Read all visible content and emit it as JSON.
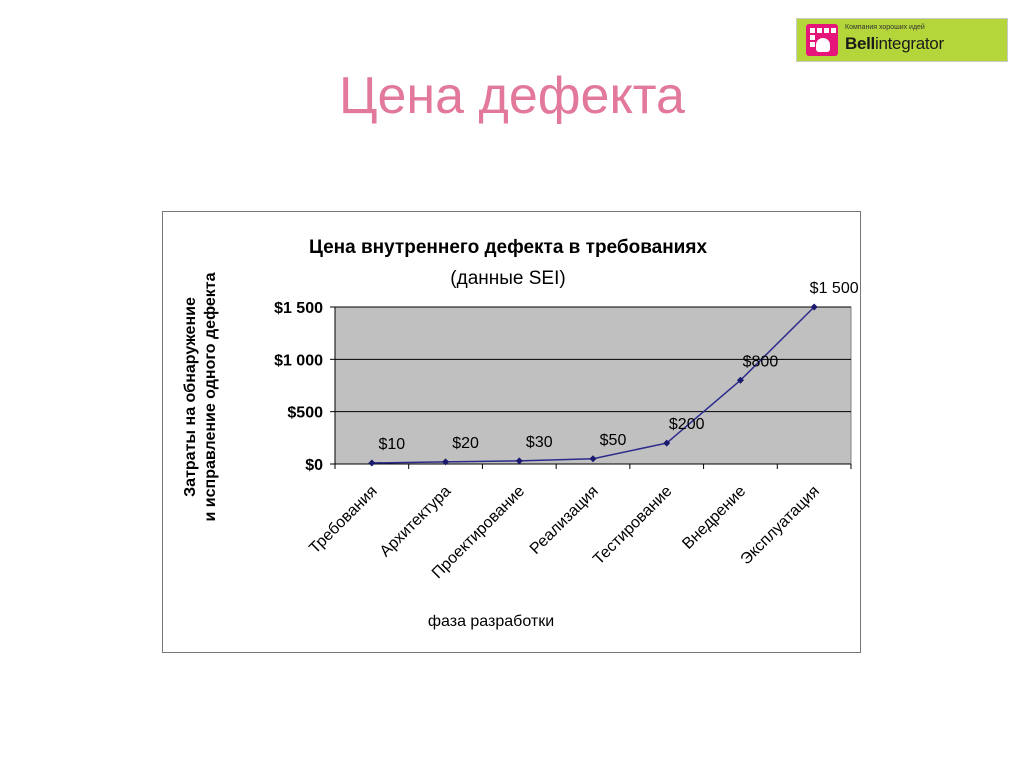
{
  "slide": {
    "title": "Цена дефекта"
  },
  "logo": {
    "tagline": "Компания хороших идей",
    "name_bold": "Bell",
    "name_regular": "integrator",
    "background_color": "#b5d63a",
    "mark_color": "#e6157a"
  },
  "chart_data": {
    "type": "line",
    "title": "Цена внутреннего дефекта в требованиях",
    "subtitle": "(данные SEI)",
    "ylabel": "Затраты на обнаружение и исправление одного дефекта",
    "xlabel": "фаза разработки",
    "categories": [
      "Требования",
      "Архитектура",
      "Проектирование",
      "Реализация",
      "Тестирование",
      "Внедрение",
      "Эксплуатация"
    ],
    "series": [
      {
        "values": [
          10,
          20,
          30,
          50,
          200,
          800,
          1500
        ],
        "data_labels": [
          "$10",
          "$20",
          "$30",
          "$50",
          "$200",
          "$800",
          "$1 500"
        ],
        "color": "#2b2b8c"
      }
    ],
    "ylim": [
      0,
      1500
    ],
    "yticks": [
      0,
      500,
      1000,
      1500
    ],
    "ytick_labels": [
      "$0",
      "$500",
      "$1 000",
      "$1 500"
    ],
    "grid": true,
    "plot_background": "#c0c0c0",
    "legend": "none"
  }
}
